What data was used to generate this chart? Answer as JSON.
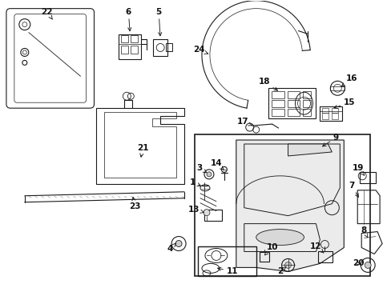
{
  "background_color": "#ffffff",
  "line_color": "#1a1a1a",
  "label_color": "#111111",
  "figsize": [
    4.89,
    3.6
  ],
  "dpi": 100
}
